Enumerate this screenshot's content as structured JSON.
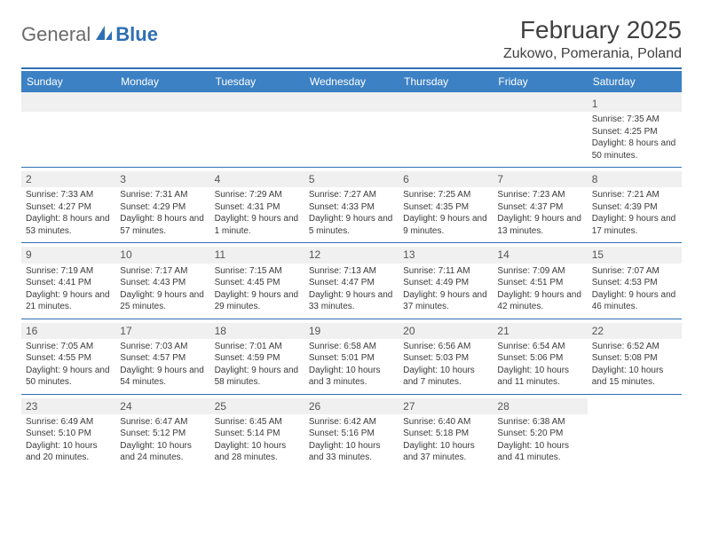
{
  "logo": {
    "word1": "General",
    "word2": "Blue",
    "brand_color": "#2f6fb3"
  },
  "title": "February 2025",
  "location": "Zukowo, Pomerania, Poland",
  "colors": {
    "header_bar": "#3c81c4",
    "divider": "#2f6fb3",
    "row_divider": "#2f6fb3",
    "shade_bg": "#f0f0f0",
    "text": "#3a3a3a"
  },
  "weekdays": [
    "Sunday",
    "Monday",
    "Tuesday",
    "Wednesday",
    "Thursday",
    "Friday",
    "Saturday"
  ],
  "weeks": [
    [
      null,
      null,
      null,
      null,
      null,
      null,
      {
        "n": "1",
        "sr": "7:35 AM",
        "ss": "4:25 PM",
        "dl": "8 hours and 50 minutes."
      }
    ],
    [
      {
        "n": "2",
        "sr": "7:33 AM",
        "ss": "4:27 PM",
        "dl": "8 hours and 53 minutes."
      },
      {
        "n": "3",
        "sr": "7:31 AM",
        "ss": "4:29 PM",
        "dl": "8 hours and 57 minutes."
      },
      {
        "n": "4",
        "sr": "7:29 AM",
        "ss": "4:31 PM",
        "dl": "9 hours and 1 minute."
      },
      {
        "n": "5",
        "sr": "7:27 AM",
        "ss": "4:33 PM",
        "dl": "9 hours and 5 minutes."
      },
      {
        "n": "6",
        "sr": "7:25 AM",
        "ss": "4:35 PM",
        "dl": "9 hours and 9 minutes."
      },
      {
        "n": "7",
        "sr": "7:23 AM",
        "ss": "4:37 PM",
        "dl": "9 hours and 13 minutes."
      },
      {
        "n": "8",
        "sr": "7:21 AM",
        "ss": "4:39 PM",
        "dl": "9 hours and 17 minutes."
      }
    ],
    [
      {
        "n": "9",
        "sr": "7:19 AM",
        "ss": "4:41 PM",
        "dl": "9 hours and 21 minutes."
      },
      {
        "n": "10",
        "sr": "7:17 AM",
        "ss": "4:43 PM",
        "dl": "9 hours and 25 minutes."
      },
      {
        "n": "11",
        "sr": "7:15 AM",
        "ss": "4:45 PM",
        "dl": "9 hours and 29 minutes."
      },
      {
        "n": "12",
        "sr": "7:13 AM",
        "ss": "4:47 PM",
        "dl": "9 hours and 33 minutes."
      },
      {
        "n": "13",
        "sr": "7:11 AM",
        "ss": "4:49 PM",
        "dl": "9 hours and 37 minutes."
      },
      {
        "n": "14",
        "sr": "7:09 AM",
        "ss": "4:51 PM",
        "dl": "9 hours and 42 minutes."
      },
      {
        "n": "15",
        "sr": "7:07 AM",
        "ss": "4:53 PM",
        "dl": "9 hours and 46 minutes."
      }
    ],
    [
      {
        "n": "16",
        "sr": "7:05 AM",
        "ss": "4:55 PM",
        "dl": "9 hours and 50 minutes."
      },
      {
        "n": "17",
        "sr": "7:03 AM",
        "ss": "4:57 PM",
        "dl": "9 hours and 54 minutes."
      },
      {
        "n": "18",
        "sr": "7:01 AM",
        "ss": "4:59 PM",
        "dl": "9 hours and 58 minutes."
      },
      {
        "n": "19",
        "sr": "6:58 AM",
        "ss": "5:01 PM",
        "dl": "10 hours and 3 minutes."
      },
      {
        "n": "20",
        "sr": "6:56 AM",
        "ss": "5:03 PM",
        "dl": "10 hours and 7 minutes."
      },
      {
        "n": "21",
        "sr": "6:54 AM",
        "ss": "5:06 PM",
        "dl": "10 hours and 11 minutes."
      },
      {
        "n": "22",
        "sr": "6:52 AM",
        "ss": "5:08 PM",
        "dl": "10 hours and 15 minutes."
      }
    ],
    [
      {
        "n": "23",
        "sr": "6:49 AM",
        "ss": "5:10 PM",
        "dl": "10 hours and 20 minutes."
      },
      {
        "n": "24",
        "sr": "6:47 AM",
        "ss": "5:12 PM",
        "dl": "10 hours and 24 minutes."
      },
      {
        "n": "25",
        "sr": "6:45 AM",
        "ss": "5:14 PM",
        "dl": "10 hours and 28 minutes."
      },
      {
        "n": "26",
        "sr": "6:42 AM",
        "ss": "5:16 PM",
        "dl": "10 hours and 33 minutes."
      },
      {
        "n": "27",
        "sr": "6:40 AM",
        "ss": "5:18 PM",
        "dl": "10 hours and 37 minutes."
      },
      {
        "n": "28",
        "sr": "6:38 AM",
        "ss": "5:20 PM",
        "dl": "10 hours and 41 minutes."
      },
      null
    ]
  ],
  "labels": {
    "sunrise": "Sunrise:",
    "sunset": "Sunset:",
    "daylight": "Daylight:"
  }
}
